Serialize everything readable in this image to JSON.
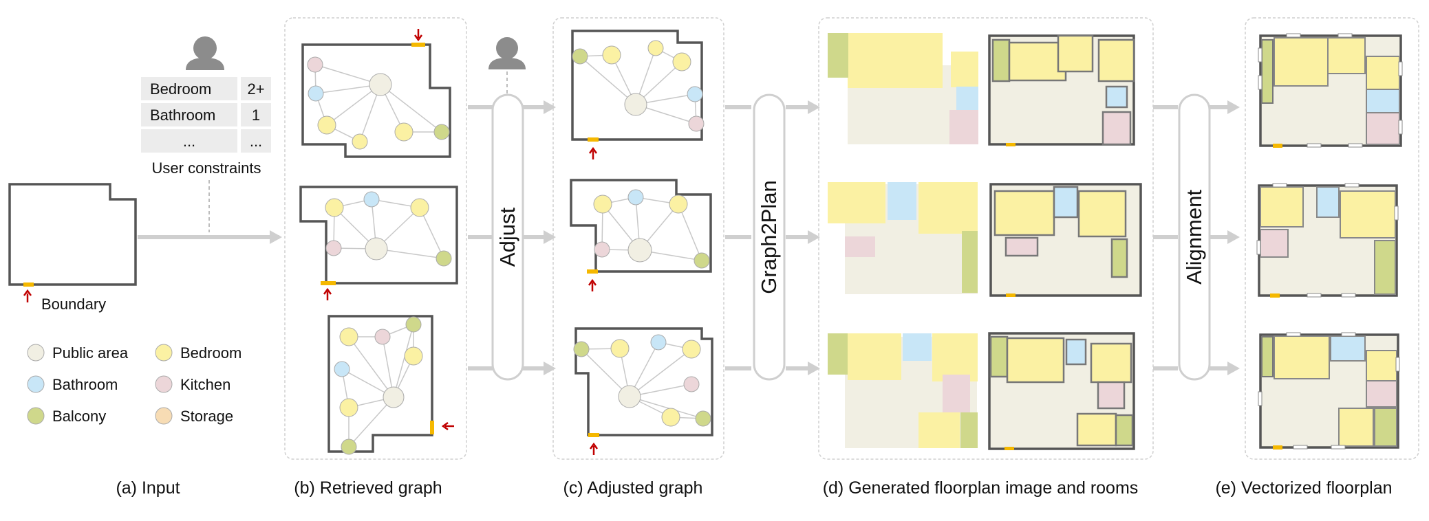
{
  "input": {
    "table": [
      {
        "label": "Bedroom",
        "value": "2+"
      },
      {
        "label": "Bathroom",
        "value": "1"
      },
      {
        "label": "...",
        "value": "..."
      }
    ],
    "user_constraints_label": "User constraints",
    "boundary_label": "Boundary"
  },
  "legend": [
    {
      "label": "Public area",
      "color": "#f1efe3"
    },
    {
      "label": "Bedroom",
      "color": "#fbf1a3"
    },
    {
      "label": "Bathroom",
      "color": "#c8e6f7"
    },
    {
      "label": "Kitchen",
      "color": "#ecd6d9"
    },
    {
      "label": "Balcony",
      "color": "#cfd88b"
    },
    {
      "label": "Storage",
      "color": "#f7dcb4"
    }
  ],
  "steps": {
    "adjust": "Adjust",
    "graph2plan": "Graph2Plan",
    "alignment": "Alignment"
  },
  "captions": {
    "a": "(a) Input",
    "b": "(b) Retrieved graph",
    "c": "(c) Adjusted graph",
    "d": "(d) Generated floorplan image and rooms",
    "e": "(e) Vectorized floorplan"
  },
  "colors": {
    "wall": "#555555",
    "door": "#f5b800",
    "arrow_red": "#c00000",
    "flow_arrow": "#cfcfcf",
    "edge": "#c8c8c8"
  }
}
